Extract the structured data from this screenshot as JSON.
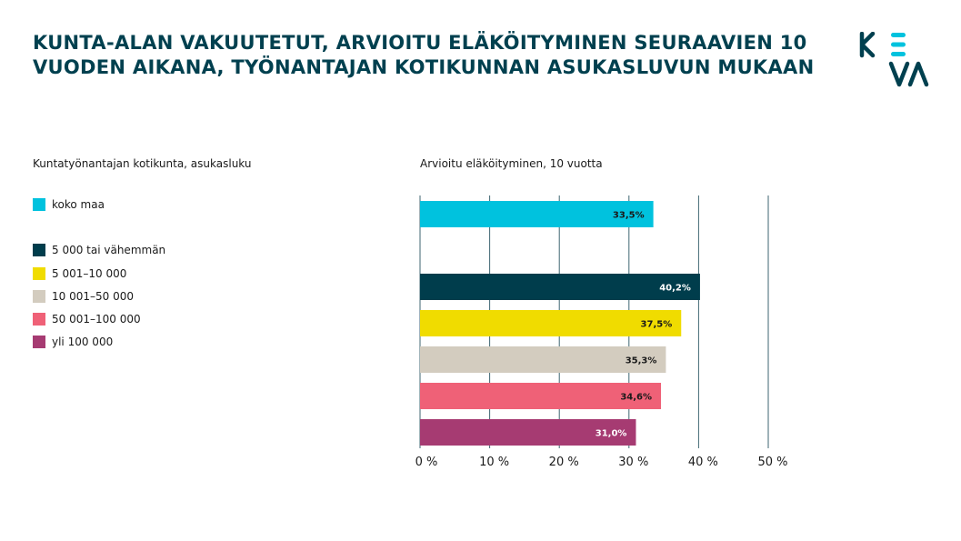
{
  "title": {
    "line1": "KUNTA-ALAN VAKUUTETUT, ARVIOITU ELÄKÖITYMINEN SEURAAVIEN 10",
    "line2": "VUODEN AIKANA, TYÖNANTAJAN KOTIKUNNAN ASUKASLUVUN MUKAAN"
  },
  "logo": {
    "text": "KEVA",
    "colors": {
      "dark": "#00404f",
      "accent": "#00c2de"
    }
  },
  "legend_heading": "Kuntatyönantajan kotikunta, asukasluku",
  "chart_heading": "Arvioitu eläköityminen, 10 vuotta",
  "legend": [
    {
      "label": "koko maa",
      "color": "#00c2de"
    },
    {
      "label": "5 000 tai vähemmän",
      "color": "#003d4c"
    },
    {
      "label": "5 001–10 000",
      "color": "#f0dc00"
    },
    {
      "label": "10 001–50 000",
      "color": "#d3ccbf"
    },
    {
      "label": "50 001–100 000",
      "color": "#ef6177"
    },
    {
      "label": "yli 100 000",
      "color": "#a63b72"
    }
  ],
  "chart_data": {
    "type": "bar",
    "orientation": "horizontal",
    "categories": [
      "koko maa",
      "5 000 tai vähemmän",
      "5 001–10 000",
      "10 001–50 000",
      "50 001–100 000",
      "yli 100 000"
    ],
    "values": [
      33.5,
      40.2,
      37.5,
      35.3,
      34.6,
      31.0
    ],
    "value_labels": [
      "33,5%",
      "40,2%",
      "37,5%",
      "35,3%",
      "34,6%",
      "31,0%"
    ],
    "label_colors": [
      "#1a1a1a",
      "#ffffff",
      "#1a1a1a",
      "#1a1a1a",
      "#1a1a1a",
      "#ffffff"
    ],
    "colors": [
      "#00c2de",
      "#003d4c",
      "#f0dc00",
      "#d3ccbf",
      "#ef6177",
      "#a63b72"
    ],
    "xlim": [
      0,
      50
    ],
    "xticks": [
      0,
      10,
      20,
      30,
      40,
      50
    ],
    "xtick_labels": [
      "0 %",
      "10 %",
      "20 %",
      "30 %",
      "40 %",
      "50 %"
    ],
    "grid": true,
    "legend_position": "left"
  }
}
